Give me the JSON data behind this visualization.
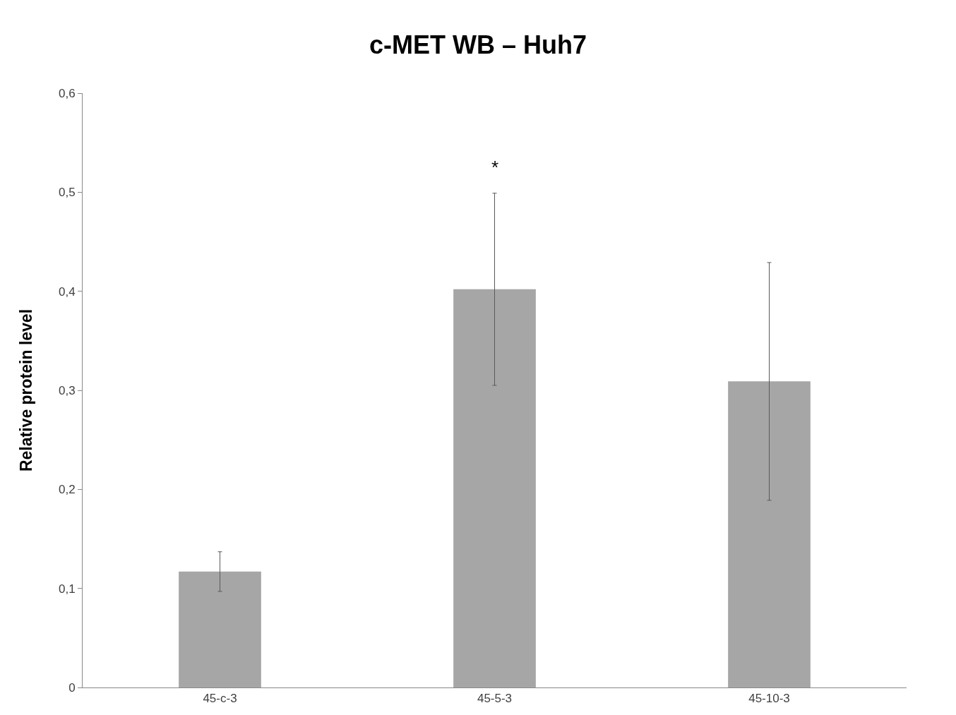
{
  "chart_data": {
    "type": "bar",
    "title": "c-MET WB – Huh7",
    "ylabel": "Relative protein level",
    "categories": [
      "45-c-3",
      "45-5-3",
      "45-10-3"
    ],
    "values": [
      0.117,
      0.402,
      0.309
    ],
    "errors": [
      0.02,
      0.097,
      0.12
    ],
    "color": "#a6a6a6",
    "ylim": [
      0,
      0.6
    ],
    "yticks": [
      0,
      {
        "value": 0.1,
        "label": "0,1"
      },
      {
        "value": 0.2,
        "label": "0,2"
      },
      {
        "value": 0.3,
        "label": "0,3"
      },
      {
        "value": 0.4,
        "label": "0,4"
      },
      {
        "value": 0.5,
        "label": "0,5"
      },
      {
        "value": 0.6,
        "label": "0,6"
      }
    ],
    "annotations": [
      {
        "text": "*",
        "x": "45-5-3",
        "y": 0.499
      }
    ],
    "grid": false,
    "legend": false
  }
}
